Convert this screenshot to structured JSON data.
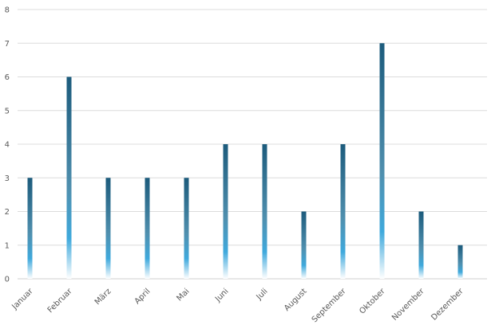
{
  "chart_data": {
    "type": "bar",
    "categories": [
      "Januar",
      "Februar",
      "März",
      "April",
      "Mai",
      "Juni",
      "Juli",
      "August",
      "September",
      "Oktober",
      "November",
      "Dezember"
    ],
    "values": [
      3,
      6,
      3,
      3,
      3,
      4,
      4,
      2,
      4,
      7,
      2,
      1
    ],
    "y_ticks": [
      0,
      1,
      2,
      3,
      4,
      5,
      6,
      7,
      8
    ],
    "ylim": [
      0,
      8
    ],
    "grid": true,
    "legend": "none",
    "title": "",
    "xlabel": "",
    "ylabel": "",
    "colors": {
      "bar_top": "#1c5b7c",
      "bar_mid": "#3fa9dc",
      "bar_bottom": "#ffffff",
      "grid": "#dcdcdc",
      "tick_text": "#595959"
    }
  }
}
